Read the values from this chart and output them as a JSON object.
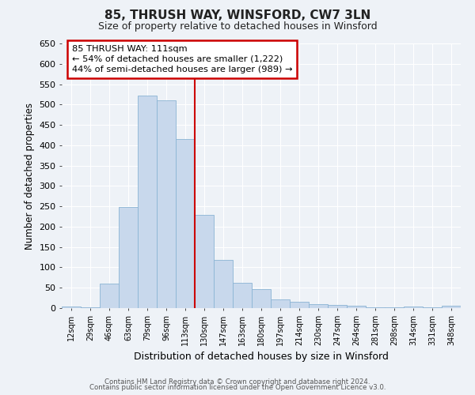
{
  "title": "85, THRUSH WAY, WINSFORD, CW7 3LN",
  "subtitle": "Size of property relative to detached houses in Winsford",
  "xlabel": "Distribution of detached houses by size in Winsford",
  "ylabel": "Number of detached properties",
  "bar_labels": [
    "12sqm",
    "29sqm",
    "46sqm",
    "63sqm",
    "79sqm",
    "96sqm",
    "113sqm",
    "130sqm",
    "147sqm",
    "163sqm",
    "180sqm",
    "197sqm",
    "214sqm",
    "230sqm",
    "247sqm",
    "264sqm",
    "281sqm",
    "298sqm",
    "314sqm",
    "331sqm",
    "348sqm"
  ],
  "bar_values": [
    3,
    2,
    60,
    248,
    522,
    510,
    415,
    228,
    118,
    62,
    47,
    22,
    15,
    10,
    7,
    5,
    2,
    1,
    3,
    1,
    5
  ],
  "bar_color": "#c8d8ec",
  "bar_edge_color": "#8ab4d4",
  "ylim": [
    0,
    650
  ],
  "yticks": [
    0,
    50,
    100,
    150,
    200,
    250,
    300,
    350,
    400,
    450,
    500,
    550,
    600,
    650
  ],
  "vline_color": "#cc0000",
  "annotation_title": "85 THRUSH WAY: 111sqm",
  "annotation_line1": "← 54% of detached houses are smaller (1,222)",
  "annotation_line2": "44% of semi-detached houses are larger (989) →",
  "annotation_box_color": "#ffffff",
  "annotation_box_edge": "#cc0000",
  "background_color": "#eef2f7",
  "grid_color": "#ffffff",
  "footer1": "Contains HM Land Registry data © Crown copyright and database right 2024.",
  "footer2": "Contains public sector information licensed under the Open Government Licence v3.0."
}
